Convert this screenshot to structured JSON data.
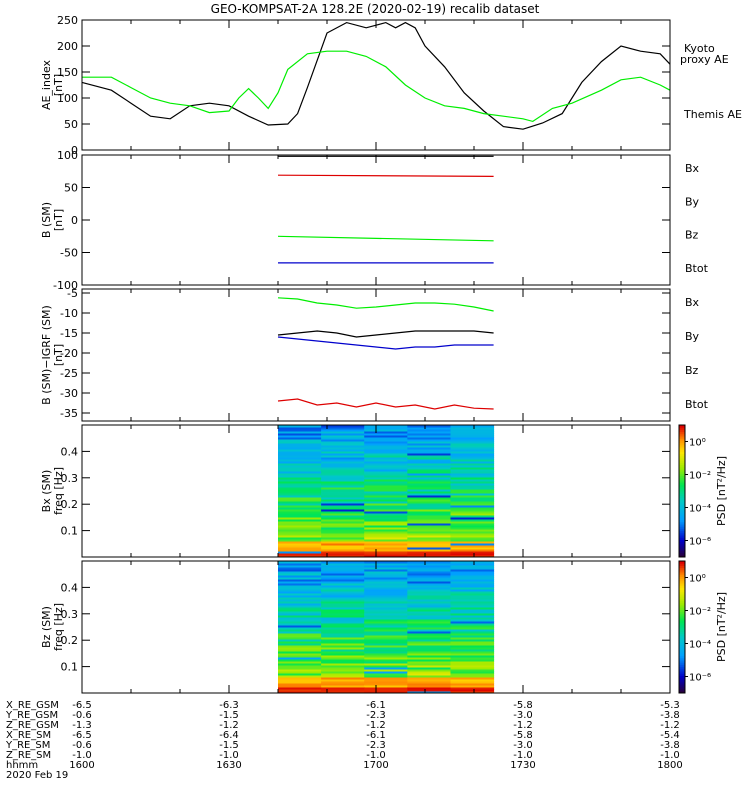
{
  "title": "GEO-KOMPSAT-2A 128.2E (2020-02-19) recalib dataset",
  "colors": {
    "black": "#000000",
    "green": "#00ee00",
    "red": "#dd0000",
    "blue": "#0000cc"
  },
  "chart_data": [
    {
      "type": "line",
      "ylabel_lines": [
        "AE_index",
        "[nT]"
      ],
      "ylim": [
        0,
        250
      ],
      "yticks": [
        0,
        50,
        100,
        150,
        200,
        250
      ],
      "series": [
        {
          "name": "Themis AE",
          "color": "#000000",
          "x": [
            0,
            3,
            5,
            7,
            9,
            11,
            13,
            15,
            17,
            19,
            21,
            22,
            23,
            25,
            27,
            29,
            31,
            32,
            33,
            34,
            35,
            37,
            39,
            41,
            43,
            45,
            47,
            49,
            51,
            53,
            55,
            57,
            59,
            60
          ],
          "y": [
            130,
            115,
            90,
            65,
            60,
            85,
            90,
            85,
            65,
            48,
            50,
            70,
            120,
            225,
            245,
            235,
            245,
            235,
            245,
            235,
            200,
            160,
            110,
            75,
            45,
            40,
            52,
            70,
            130,
            170,
            200,
            190,
            185,
            165
          ]
        },
        {
          "name": "Kyoto proxy AE",
          "color": "#00ee00",
          "x": [
            0,
            3,
            5,
            7,
            9,
            11,
            13,
            15,
            16,
            17,
            18,
            19,
            20,
            21,
            23,
            25,
            27,
            29,
            31,
            33,
            35,
            37,
            39,
            41,
            43,
            45,
            46,
            48,
            50,
            53,
            55,
            57,
            59,
            60
          ],
          "y": [
            140,
            140,
            120,
            100,
            90,
            85,
            72,
            75,
            100,
            118,
            100,
            80,
            110,
            155,
            185,
            190,
            190,
            180,
            160,
            125,
            100,
            85,
            80,
            70,
            65,
            60,
            55,
            80,
            90,
            115,
            135,
            140,
            125,
            115
          ]
        }
      ],
      "legend": [
        {
          "label": "Kyoto",
          "color": "#00ee00"
        },
        {
          "label": "proxy AE",
          "color": "#00ee00"
        },
        {
          "label": "Themis AE",
          "color": "#000000"
        }
      ]
    },
    {
      "type": "line",
      "ylabel_lines": [
        "B (SM)",
        "[nT]"
      ],
      "ylim": [
        -100,
        100
      ],
      "yticks": [
        -100,
        -50,
        0,
        50,
        100
      ],
      "series": [
        {
          "name": "Btot",
          "color": "#000000",
          "x": [
            20,
            42
          ],
          "y": [
            98,
            98
          ]
        },
        {
          "name": "Bz",
          "color": "#dd0000",
          "x": [
            20,
            42
          ],
          "y": [
            69,
            67
          ]
        },
        {
          "name": "By",
          "color": "#00ee00",
          "x": [
            20,
            42
          ],
          "y": [
            -25,
            -32
          ]
        },
        {
          "name": "Bx",
          "color": "#0000cc",
          "x": [
            20,
            42
          ],
          "y": [
            -66,
            -66
          ]
        }
      ],
      "legend": [
        {
          "label": "Bx",
          "color": "#0000cc"
        },
        {
          "label": "By",
          "color": "#00ee00"
        },
        {
          "label": "Bz",
          "color": "#dd0000"
        },
        {
          "label": "Btot",
          "color": "#000000"
        }
      ]
    },
    {
      "type": "line",
      "ylabel_lines": [
        "B (SM)−IGRF (SM)",
        "[nT]"
      ],
      "ylim": [
        -37,
        -4
      ],
      "yticks": [
        -35,
        -30,
        -25,
        -20,
        -15,
        -10,
        -5
      ],
      "series": [
        {
          "name": "By",
          "color": "#00ee00",
          "x": [
            20,
            22,
            24,
            26,
            28,
            30,
            32,
            34,
            36,
            38,
            40,
            42
          ],
          "y": [
            -6.2,
            -6.5,
            -7.5,
            -8,
            -8.8,
            -8.5,
            -8,
            -7.5,
            -7.5,
            -7.8,
            -8.5,
            -9.5
          ]
        },
        {
          "name": "Btot",
          "color": "#000000",
          "x": [
            20,
            22,
            24,
            26,
            28,
            30,
            32,
            34,
            36,
            38,
            40,
            42
          ],
          "y": [
            -15.5,
            -15,
            -14.5,
            -15,
            -16,
            -15.5,
            -15,
            -14.5,
            -14.5,
            -14.5,
            -14.5,
            -15
          ]
        },
        {
          "name": "Bx",
          "color": "#0000cc",
          "x": [
            20,
            22,
            24,
            26,
            28,
            30,
            32,
            34,
            36,
            38,
            40,
            42
          ],
          "y": [
            -16,
            -16.5,
            -17,
            -17.5,
            -18,
            -18.5,
            -19,
            -18.5,
            -18.5,
            -18,
            -18,
            -18
          ]
        },
        {
          "name": "Bz",
          "color": "#dd0000",
          "x": [
            20,
            22,
            24,
            26,
            28,
            30,
            32,
            34,
            36,
            38,
            40,
            42
          ],
          "y": [
            -32,
            -31.5,
            -33,
            -32.5,
            -33.5,
            -32.5,
            -33.5,
            -33,
            -34,
            -33,
            -33.8,
            -34
          ]
        }
      ],
      "legend": [
        {
          "label": "Bx",
          "color": "#0000cc"
        },
        {
          "label": "By",
          "color": "#00ee00"
        },
        {
          "label": "Bz",
          "color": "#dd0000"
        },
        {
          "label": "Btot",
          "color": "#000000"
        }
      ]
    },
    {
      "type": "heatmap",
      "ylabel_lines": [
        "Bx (SM)",
        "freq [Hz]"
      ],
      "ylim": [
        0,
        0.5
      ],
      "yticks": [
        0.1,
        0.2,
        0.3,
        0.4
      ],
      "x_range": [
        20,
        42
      ],
      "colorbar": {
        "label": "PSD [nT²/Hz]",
        "ticks": [
          "10⁰",
          "10⁻²",
          "10⁻⁴",
          "10⁻⁶"
        ],
        "range_log": [
          -7,
          1
        ]
      }
    },
    {
      "type": "heatmap",
      "ylabel_lines": [
        "Bz (SM)",
        "freq [Hz]"
      ],
      "ylim": [
        0,
        0.5
      ],
      "yticks": [
        0.1,
        0.2,
        0.3,
        0.4
      ],
      "x_range": [
        20,
        42
      ],
      "colorbar": {
        "label": "PSD [nT²/Hz]",
        "ticks": [
          "10⁰",
          "10⁻²",
          "10⁻⁴",
          "10⁻⁶"
        ],
        "range_log": [
          -7,
          1
        ]
      }
    }
  ],
  "x_axis": {
    "range_min": [
      0,
      60
    ],
    "tick_positions_min": [
      0,
      15,
      30,
      45,
      60
    ],
    "rows": [
      {
        "label": "X_RE_GSM",
        "values": [
          "-6.5",
          "-6.3",
          "-6.1",
          "-5.8",
          "-5.3"
        ]
      },
      {
        "label": "Y_RE_GSM",
        "values": [
          "-0.6",
          "-1.5",
          "-2.3",
          "-3.0",
          "-3.8"
        ]
      },
      {
        "label": "Z_RE_GSM",
        "values": [
          "-1.3",
          "-1.2",
          "-1.2",
          "-1.2",
          "-1.2"
        ]
      },
      {
        "label": "X_RE_SM",
        "values": [
          "-6.5",
          "-6.4",
          "-6.1",
          "-5.8",
          "-5.4"
        ]
      },
      {
        "label": "Y_RE_SM",
        "values": [
          "-0.6",
          "-1.5",
          "-2.3",
          "-3.0",
          "-3.8"
        ]
      },
      {
        "label": "Z_RE_SM",
        "values": [
          "-1.0",
          "-1.0",
          "-1.0",
          "-1.0",
          "-1.0"
        ]
      },
      {
        "label": "hhmm",
        "values": [
          "1600",
          "1630",
          "1700",
          "1730",
          "1800"
        ]
      }
    ],
    "date": "2020 Feb 19"
  }
}
